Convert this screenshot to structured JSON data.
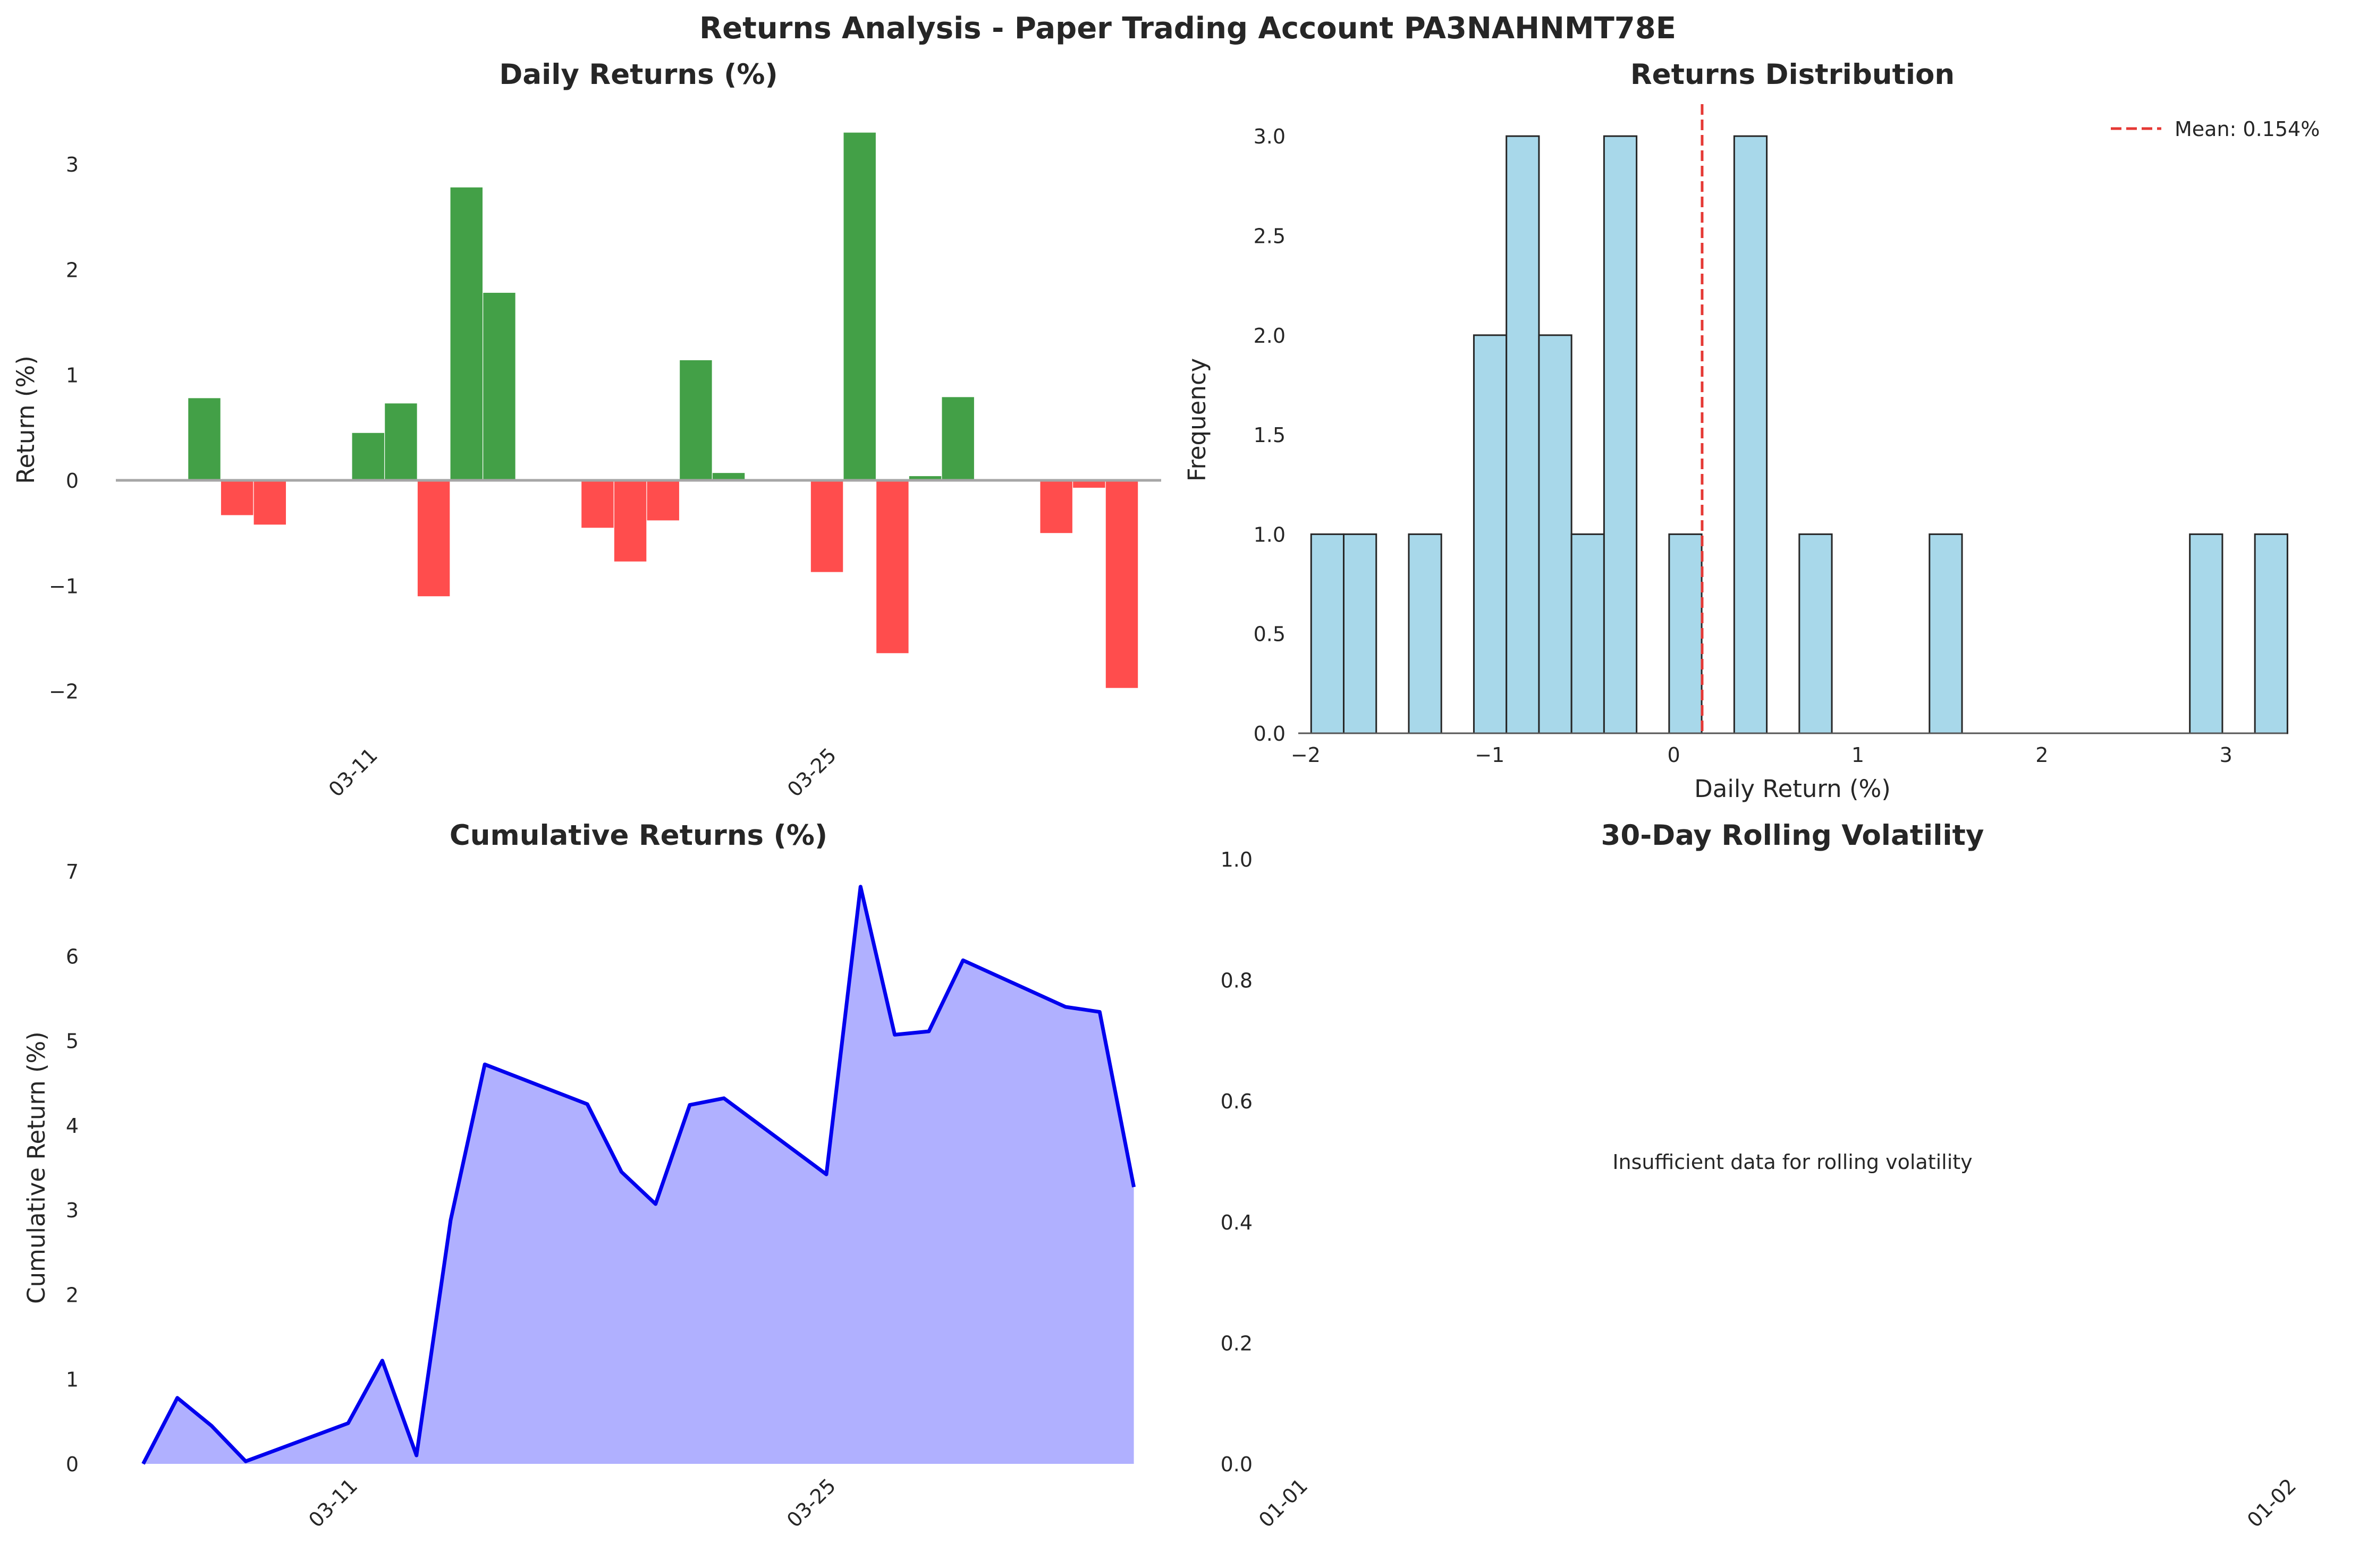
{
  "figure_title": "Returns Analysis - Paper Trading Account PA3NAHNMT78E",
  "colors": {
    "positive": "#43a047",
    "negative": "#ff4d4d",
    "zero_line": "#a6a6a6",
    "hist_fill": "#a8d8ea",
    "hist_edge": "#262626",
    "mean_line": "#e53935",
    "cum_line": "#0000ee",
    "cum_fill": "#b0b0ff"
  },
  "chart_data": [
    {
      "type": "bar",
      "title": "Daily Returns (%)",
      "xlabel": "",
      "ylabel": "Return (%)",
      "x_tick_labels": [
        "03-11",
        "03-25"
      ],
      "x_tick_days": [
        10,
        24
      ],
      "x_range_days": [
        2.3,
        34.2
      ],
      "ylim": [
        -2.4,
        3.55
      ],
      "y_ticks": [
        -2,
        -1,
        0,
        1,
        2,
        3
      ],
      "grid": false,
      "days": [
        5,
        6,
        7,
        10,
        11,
        12,
        13,
        14,
        17,
        18,
        19,
        20,
        21,
        24,
        25,
        26,
        27,
        28,
        31,
        32,
        33
      ],
      "values": [
        0.78,
        -0.33,
        -0.42,
        0.45,
        0.73,
        -1.1,
        2.78,
        1.78,
        -0.45,
        -0.77,
        -0.38,
        1.14,
        0.07,
        -0.87,
        3.3,
        -1.64,
        0.04,
        0.79,
        -0.5,
        -0.07,
        -1.97
      ]
    },
    {
      "type": "bar",
      "title": "Returns Distribution",
      "xlabel": "Daily Return (%)",
      "ylabel": "Frequency",
      "xlim": [
        -2.04,
        3.33
      ],
      "ylim": [
        0,
        3.15
      ],
      "x_ticks": [
        -2,
        -1,
        0,
        1,
        2,
        3
      ],
      "y_ticks": [
        0.0,
        0.5,
        1.0,
        1.5,
        2.0,
        2.5,
        3.0
      ],
      "bin_start": -1.97,
      "bin_width": 0.1768,
      "counts": [
        1,
        1,
        0,
        1,
        0,
        2,
        3,
        2,
        1,
        3,
        0,
        1,
        0,
        3,
        0,
        1,
        0,
        0,
        0,
        1,
        0,
        0,
        0,
        0,
        0,
        0,
        0,
        1,
        0,
        1
      ],
      "mean": 0.154,
      "legend": [
        {
          "label": "Mean: 0.154%"
        }
      ],
      "legend_position": "top-right",
      "grid": false
    },
    {
      "type": "area",
      "title": "Cumulative Returns (%)",
      "xlabel": "",
      "ylabel": "Cumulative Return (%)",
      "x_tick_labels": [
        "03-11",
        "03-25"
      ],
      "x_tick_days": [
        10,
        24
      ],
      "x_range_days": [
        3.2,
        33.8
      ],
      "ylim": [
        0,
        7
      ],
      "y_ticks": [
        0,
        1,
        2,
        3,
        4,
        5,
        6,
        7
      ],
      "grid": false,
      "days": [
        4,
        5,
        6,
        7,
        10,
        11,
        12,
        13,
        14,
        17,
        18,
        19,
        20,
        21,
        24,
        25,
        26,
        27,
        28,
        31,
        32,
        33
      ],
      "values": [
        0,
        0.78,
        0.45,
        0.03,
        0.48,
        1.22,
        0.1,
        2.88,
        4.72,
        4.25,
        3.45,
        3.07,
        4.24,
        4.32,
        3.42,
        6.82,
        5.07,
        5.11,
        5.95,
        5.4,
        5.34,
        3.27
      ]
    },
    {
      "type": "line",
      "title": "30-Day Rolling Volatility",
      "xlabel": "",
      "ylabel": "",
      "x_tick_labels": [
        "01-01",
        "01-02"
      ],
      "ylim": [
        0,
        1
      ],
      "y_ticks": [
        0.0,
        0.2,
        0.4,
        0.6,
        0.8,
        1.0
      ],
      "annotation": "Insufficient data for rolling volatility",
      "grid": false
    }
  ]
}
